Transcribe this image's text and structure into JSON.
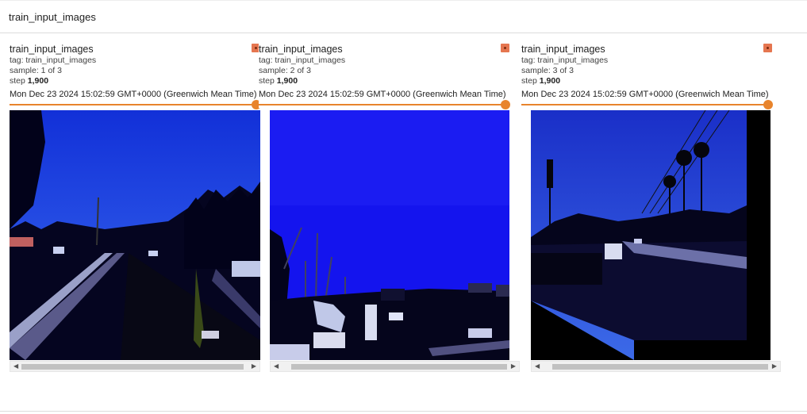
{
  "header": {
    "title": "train_input_images"
  },
  "cards": [
    {
      "run_name": "train_input_images",
      "tag": "tag: train_input_images",
      "sample": "sample: 1 of 3",
      "step_label": "step",
      "step_value": "1,900",
      "timestamp": "Mon Dec 23 2024 15:02:59 GMT+0000 (Greenwich Mean Time)",
      "slider_fraction": 1.0
    },
    {
      "run_name": "train_input_images",
      "tag": "tag: train_input_images",
      "sample": "sample: 2 of 3",
      "step_label": "step",
      "step_value": "1,900",
      "timestamp": "Mon Dec 23 2024 15:02:59 GMT+0000 (Greenwich Mean Time)",
      "slider_fraction": 1.0
    },
    {
      "run_name": "train_input_images",
      "tag": "tag: train_input_images",
      "sample": "sample: 3 of 3",
      "step_label": "step",
      "step_value": "1,900",
      "timestamp": "Mon Dec 23 2024 15:02:59 GMT+0000 (Greenwich Mean Time)",
      "slider_fraction": 1.0
    }
  ],
  "colors": {
    "accent": "#e8842c",
    "expand_icon": "#e57650",
    "sky_blue": "#1b1ff0"
  },
  "icons": {
    "expand": "expand-image-icon",
    "scroll_left": "triangle-left-icon",
    "scroll_right": "triangle-right-icon"
  }
}
